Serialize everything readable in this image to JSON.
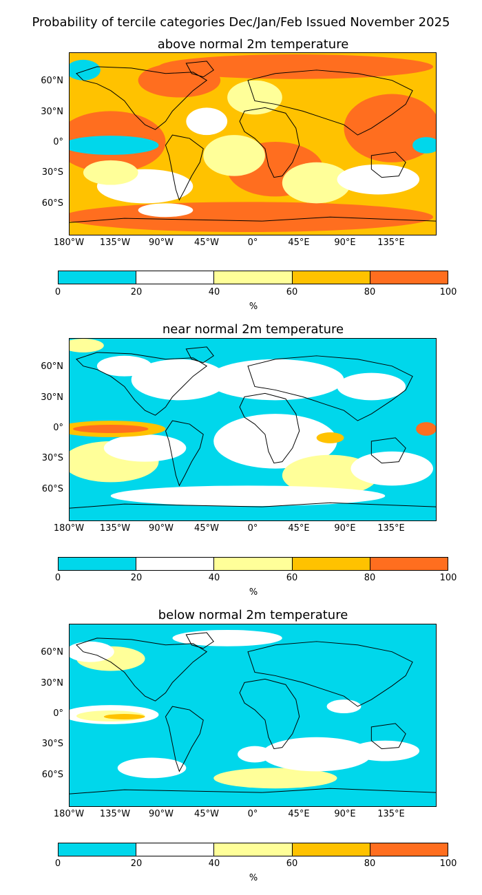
{
  "figure": {
    "title": "Probability of tercile categories Dec/Jan/Feb Issued November 2025"
  },
  "panels": [
    {
      "id": "above",
      "title": "above normal 2m temperature",
      "dominant": "orange"
    },
    {
      "id": "near",
      "title": "near normal 2m temperature",
      "dominant": "cyan-mixed"
    },
    {
      "id": "below",
      "title": "below normal 2m temperature",
      "dominant": "cyan"
    }
  ],
  "axes": {
    "lat_labels": [
      "60°N",
      "30°N",
      "0°",
      "30°S",
      "60°S"
    ],
    "lon_labels": [
      "180°W",
      "135°W",
      "90°W",
      "45°W",
      "0°",
      "45°E",
      "90°E",
      "135°E"
    ]
  },
  "colorbar": {
    "ticks": [
      "0",
      "20",
      "40",
      "60",
      "80",
      "100"
    ],
    "unit": "%",
    "colors": [
      "#00d7eb",
      "#ffffff",
      "#ffff99",
      "#ffc200",
      "#ff6e1f"
    ],
    "bins": [
      "0-20",
      "20-40",
      "40-60",
      "60-80",
      "80-100"
    ]
  }
}
